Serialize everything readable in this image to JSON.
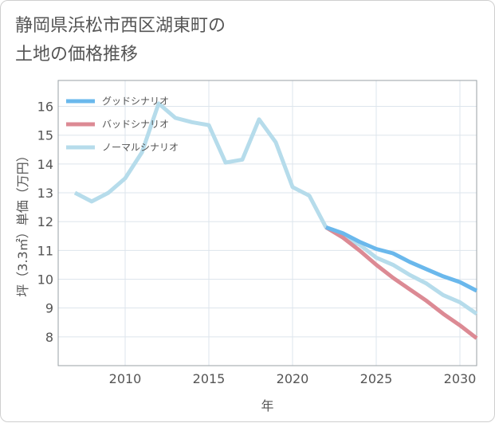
{
  "title": [
    "静岡県浜松市西区湖東町の",
    "土地の価格推移"
  ],
  "chart_data": {
    "type": "line",
    "xlabel": "年",
    "ylabel": "坪（3.3㎡）単価（万円）",
    "xlim": [
      2006,
      2031
    ],
    "ylim": [
      7,
      16.9
    ],
    "xticks": [
      2010,
      2015,
      2020,
      2025,
      2030
    ],
    "yticks": [
      8,
      9,
      10,
      11,
      12,
      13,
      14,
      15,
      16
    ],
    "legend_position": "top-left",
    "series": [
      {
        "name": "グッドシナリオ",
        "color": "#6ab8ec",
        "x": [
          2022,
          2023,
          2024,
          2025,
          2026,
          2027,
          2028,
          2029,
          2030,
          2031
        ],
        "y": [
          11.8,
          11.6,
          11.3,
          11.05,
          10.9,
          10.6,
          10.35,
          10.1,
          9.9,
          9.6
        ]
      },
      {
        "name": "バッドシナリオ",
        "color": "#dc8a94",
        "x": [
          2022,
          2023,
          2024,
          2025,
          2026,
          2027,
          2028,
          2029,
          2030,
          2031
        ],
        "y": [
          11.8,
          11.45,
          11.0,
          10.5,
          10.05,
          9.65,
          9.25,
          8.8,
          8.4,
          7.95
        ]
      },
      {
        "name": "ノーマルシナリオ",
        "color": "#b6dceb",
        "x": [
          2007,
          2008,
          2009,
          2010,
          2011,
          2012,
          2013,
          2014,
          2015,
          2016,
          2017,
          2018,
          2019,
          2020,
          2021,
          2022,
          2023,
          2024,
          2025,
          2026,
          2027,
          2028,
          2029,
          2030,
          2031
        ],
        "y": [
          13.0,
          12.7,
          13.0,
          13.5,
          14.4,
          16.1,
          15.6,
          15.45,
          15.35,
          14.05,
          14.15,
          15.55,
          14.75,
          13.2,
          12.9,
          11.8,
          11.45,
          11.2,
          10.75,
          10.5,
          10.15,
          9.85,
          9.45,
          9.2,
          8.8
        ]
      }
    ]
  }
}
